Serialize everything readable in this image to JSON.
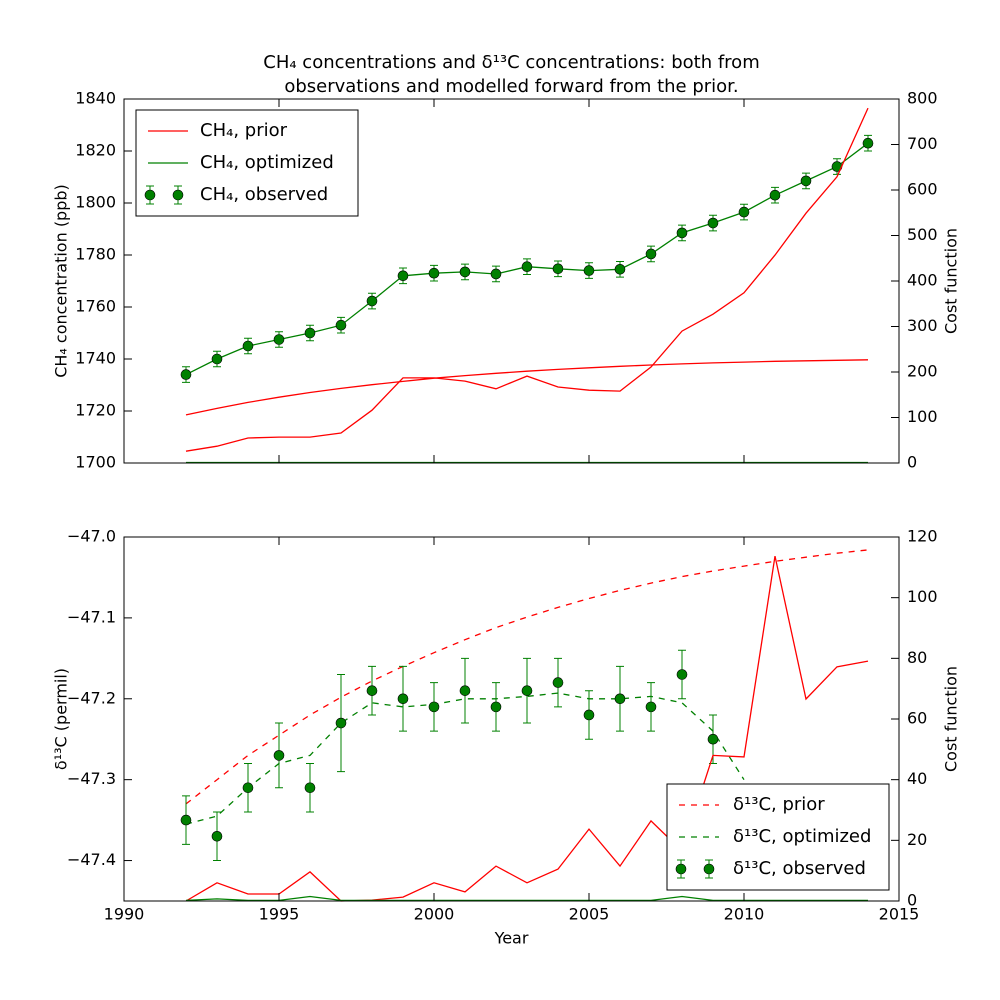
{
  "chart_data": [
    {
      "type": "line",
      "title": [
        "CH₄ concentrations and δ¹³C concentrations: both from",
        "observations and modelled forward from the prior."
      ],
      "ylabel": "CH₄ concentration (ppb)",
      "y2label": "Cost function",
      "x": [
        1992,
        1993,
        1994,
        1995,
        1996,
        1997,
        1998,
        1999,
        2000,
        2001,
        2002,
        2003,
        2004,
        2005,
        2006,
        2007,
        2008,
        2009,
        2010,
        2011,
        2012,
        2013,
        2014
      ],
      "xlim": [
        1990,
        2015
      ],
      "xticks": [
        1990,
        1995,
        2000,
        2005,
        2010,
        2015
      ],
      "ylim": [
        1700,
        1840
      ],
      "yticks": [
        1700,
        1720,
        1740,
        1760,
        1780,
        1800,
        1820,
        1840
      ],
      "y2lim": [
        0,
        800
      ],
      "y2ticks": [
        0,
        100,
        200,
        300,
        400,
        500,
        600,
        700,
        800
      ],
      "legend": "upper left",
      "series": [
        {
          "name": "CH₄, prior",
          "color": "#ff0000",
          "linestyle": "solid",
          "values": [
            1718.5,
            1721,
            1723.3,
            1725.3,
            1727.1,
            1728.7,
            1730.1,
            1731.4,
            1732.6,
            1733.6,
            1734.5,
            1735.3,
            1736,
            1736.6,
            1737.2,
            1737.7,
            1738.1,
            1738.5,
            1738.8,
            1739.1,
            1739.3,
            1739.5,
            1739.7
          ]
        },
        {
          "name": "CH₄, optimized",
          "color": "#008000",
          "linestyle": "solid",
          "values": [
            1734,
            1740,
            1745,
            1747.5,
            1750,
            1753,
            1762.3,
            1772,
            1773,
            1773.5,
            1772.7,
            1775.5,
            1774.7,
            1774,
            1774.5,
            1780.4,
            1788.5,
            1792.3,
            1796.5,
            1803,
            1808.5,
            1814,
            1823
          ]
        },
        {
          "name": "CH₄, observed",
          "color": "#008000",
          "linestyle": "none",
          "marker": "o",
          "values": [
            1734,
            1740,
            1745,
            1747.5,
            1750,
            1753,
            1762.3,
            1772,
            1773,
            1773.5,
            1772.7,
            1775.5,
            1774.7,
            1774,
            1774.5,
            1780.4,
            1788.5,
            1792.3,
            1796.5,
            1803,
            1808.5,
            1814,
            1823
          ],
          "errors": [
            3,
            3,
            3,
            3,
            3,
            3,
            3,
            3,
            3,
            3,
            3,
            3,
            3,
            3,
            3,
            3,
            3,
            3,
            3,
            3,
            3,
            3,
            3
          ]
        },
        {
          "color": "#ff0000",
          "linestyle": "solid",
          "axis": "y2",
          "values": [
            26,
            37,
            55,
            57,
            57,
            66,
            116,
            187,
            187,
            180,
            163,
            191,
            167,
            160,
            158,
            211,
            290,
            327,
            374,
            457,
            549,
            629,
            780
          ]
        },
        {
          "color": "#008000",
          "linestyle": "solid",
          "axis": "y2",
          "values": [
            1,
            1,
            1,
            1,
            1,
            1,
            1,
            1,
            1,
            1,
            1,
            1,
            1,
            1,
            1,
            1,
            1,
            1,
            1,
            1,
            1,
            1,
            1
          ]
        }
      ]
    },
    {
      "type": "line",
      "xlabel": "Year",
      "ylabel": "δ¹³C (permil)",
      "y2label": "Cost function",
      "x": [
        1992,
        1993,
        1994,
        1995,
        1996,
        1997,
        1998,
        1999,
        2000,
        2001,
        2002,
        2003,
        2004,
        2005,
        2006,
        2007,
        2008,
        2009,
        2010,
        2011,
        2012,
        2013,
        2014
      ],
      "xlim": [
        1990,
        2015
      ],
      "xticks": [
        1990,
        1995,
        2000,
        2005,
        2010,
        2015
      ],
      "ylim": [
        -47.45,
        -47.0
      ],
      "yticks": [
        {
          "value": -47.4,
          "label": "−47.4"
        },
        {
          "value": -47.3,
          "label": "−47.3"
        },
        {
          "value": -47.2,
          "label": "−47.2"
        },
        {
          "value": -47.1,
          "label": "−47.1"
        },
        {
          "value": -47.0,
          "label": "−47.0"
        }
      ],
      "y2lim": [
        0,
        120
      ],
      "y2ticks": [
        0,
        20,
        40,
        60,
        80,
        100,
        120
      ],
      "legend": "lower right",
      "series": [
        {
          "name": "δ¹³C, prior",
          "color": "#ff0000",
          "linestyle": "dashed",
          "values": [
            -47.33,
            -47.3,
            -47.27,
            -47.245,
            -47.22,
            -47.198,
            -47.178,
            -47.16,
            -47.143,
            -47.127,
            -47.112,
            -47.099,
            -47.087,
            -47.076,
            -47.066,
            -47.057,
            -47.049,
            -47.042,
            -47.036,
            -47.03,
            -47.025,
            -47.02,
            -47.016
          ]
        },
        {
          "name": "δ¹³C, optimized",
          "color": "#008000",
          "linestyle": "dashed",
          "values": [
            -47.355,
            -47.345,
            -47.31,
            -47.28,
            -47.27,
            -47.23,
            -47.205,
            -47.21,
            -47.207,
            -47.2,
            -47.2,
            -47.197,
            -47.193,
            -47.2,
            -47.2,
            -47.197,
            -47.205,
            -47.24,
            -47.3,
            null,
            null,
            null,
            null
          ]
        },
        {
          "name": "δ¹³C, observed",
          "color": "#008000",
          "linestyle": "none",
          "marker": "o",
          "values": [
            -47.35,
            -47.37,
            -47.31,
            -47.27,
            -47.31,
            -47.23,
            -47.19,
            -47.2,
            -47.21,
            -47.19,
            -47.21,
            -47.19,
            -47.18,
            -47.22,
            -47.2,
            -47.21,
            -47.17,
            -47.25,
            null,
            null,
            null,
            null,
            null
          ],
          "errors": [
            0.03,
            0.03,
            0.03,
            0.04,
            0.03,
            0.06,
            0.03,
            0.04,
            0.03,
            0.04,
            0.03,
            0.04,
            0.03,
            0.03,
            0.04,
            0.03,
            0.03,
            0.03,
            null,
            null,
            null,
            null,
            null
          ]
        },
        {
          "color": "#ff0000",
          "linestyle": "solid",
          "axis": "y2",
          "values": [
            0,
            6,
            2.3,
            2.3,
            9.6,
            0,
            0.3,
            1.3,
            6,
            3,
            11.5,
            6,
            10.5,
            23.7,
            11.5,
            26.4,
            16.5,
            48,
            47.5,
            113.7,
            66.6,
            77.2,
            79.1
          ]
        },
        {
          "color": "#008000",
          "linestyle": "solid",
          "axis": "y2",
          "values": [
            0.2,
            0.7,
            0.2,
            0.2,
            1.5,
            0.2,
            0.2,
            0.2,
            0.2,
            0.2,
            0.2,
            0.2,
            0.2,
            0.2,
            0.2,
            0.2,
            1.5,
            0.2,
            0.2,
            0.2,
            0.2,
            0.2,
            0.2
          ]
        }
      ]
    }
  ]
}
